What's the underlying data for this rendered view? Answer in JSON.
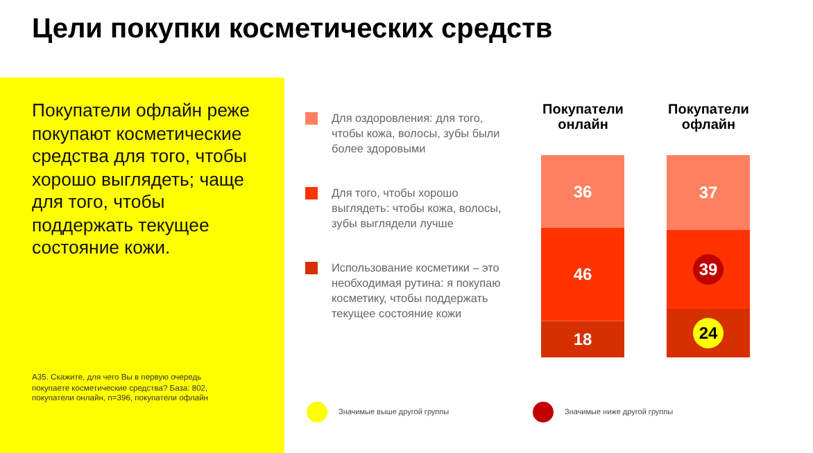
{
  "chart_data": {
    "type": "bar",
    "title": "Цели покупки косметических средств",
    "stacked": true,
    "data_labels": true,
    "legend": "left",
    "categories": [
      "Покупатели онлайн",
      "Покупатели офлайн"
    ],
    "series": [
      {
        "name": "Использование косметики – это необходимая рутина: я покупаю косметику, чтобы поддержать текущее состояние кожи",
        "color": "#d62f00",
        "values": [
          18,
          24
        ]
      },
      {
        "name": "Для того, чтобы хорошо выглядеть: чтобы кожа, волосы, зубы выглядели лучше",
        "color": "#ff3300",
        "values": [
          46,
          39
        ]
      },
      {
        "name": "Для оздоровления: для того, чтобы кожа, волосы, зубы были более здоровыми",
        "color": "#ff8060",
        "values": [
          36,
          37
        ]
      }
    ],
    "annotations": [
      "Покупатели офлайн реже покупают косметические средства для того, чтобы хорошо выглядеть; чаще для того, чтобы поддержать текущее состояние кожи.",
      "А35. Скажите, для чего Вы в первую очередь покупаете косметические средства? База: 802, покупатели онлайн, n=396, покупатели офлайн",
      "Значимые выше другой группы",
      "Значимые ниже другой группы"
    ]
  }
}
